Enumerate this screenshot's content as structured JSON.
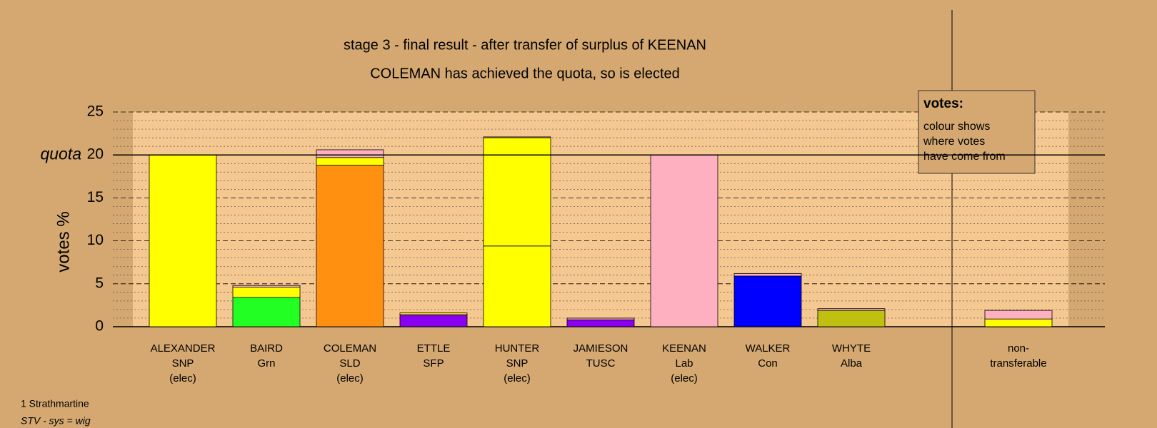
{
  "chart_data": {
    "type": "stacked-bar",
    "title": "stage 3 - final result - after transfer of surplus of KEENAN",
    "subtitle": "COLEMAN has achieved the quota, so is elected",
    "y_label": "votes %",
    "categories": [
      [
        "ALEXANDER",
        "SNP",
        "(elec)"
      ],
      [
        "BAIRD",
        "Grn"
      ],
      [
        "COLEMAN",
        "SLD",
        "(elec)"
      ],
      [
        "ETTLE",
        "SFP"
      ],
      [
        "HUNTER",
        "SNP",
        "(elec)"
      ],
      [
        "JAMIESON",
        "TUSC"
      ],
      [
        "KEENAN",
        "Lab",
        "(elec)"
      ],
      [
        "WALKER",
        "Con"
      ],
      [
        "WHYTE",
        "Alba"
      ],
      null,
      [
        "non-",
        "transferable"
      ]
    ],
    "series": [
      {
        "colors": [
          "#ffff00",
          "#22ff22",
          "#ff9010",
          "#8a00f0",
          "#ffff00",
          "#8a00f0",
          "#ffb0c0",
          "#0000ff",
          "#c0c010",
          null,
          null
        ],
        "values": [
          20,
          3.4,
          18.8,
          1.4,
          9.4,
          0.8,
          20,
          5.9,
          1.9,
          null,
          null
        ]
      },
      {
        "color": "#ffff00",
        "values": [
          null,
          1.2,
          0.9,
          0.2,
          12.6,
          null,
          null,
          null,
          null,
          null,
          0.9
        ]
      },
      {
        "color": "#ffb0c0",
        "values": [
          null,
          0.2,
          0.9,
          null,
          0.1,
          0.2,
          null,
          0.3,
          0.2,
          null,
          1.0
        ]
      }
    ],
    "ylim": [
      0,
      25
    ],
    "yticks": [
      0,
      5,
      10,
      15,
      20,
      25
    ],
    "minor_yticks": [
      1,
      2,
      3,
      4,
      6,
      7,
      8,
      9,
      11,
      12,
      13,
      14,
      16,
      17,
      18,
      19,
      21,
      22,
      23,
      24
    ],
    "quota": {
      "value": 20,
      "label": "quota"
    },
    "legend": {
      "title": "votes:",
      "lines": [
        "colour shows",
        "where votes",
        "have come from"
      ]
    },
    "footer": [
      "1 Strathmartine",
      "STV - sys = wig"
    ]
  }
}
